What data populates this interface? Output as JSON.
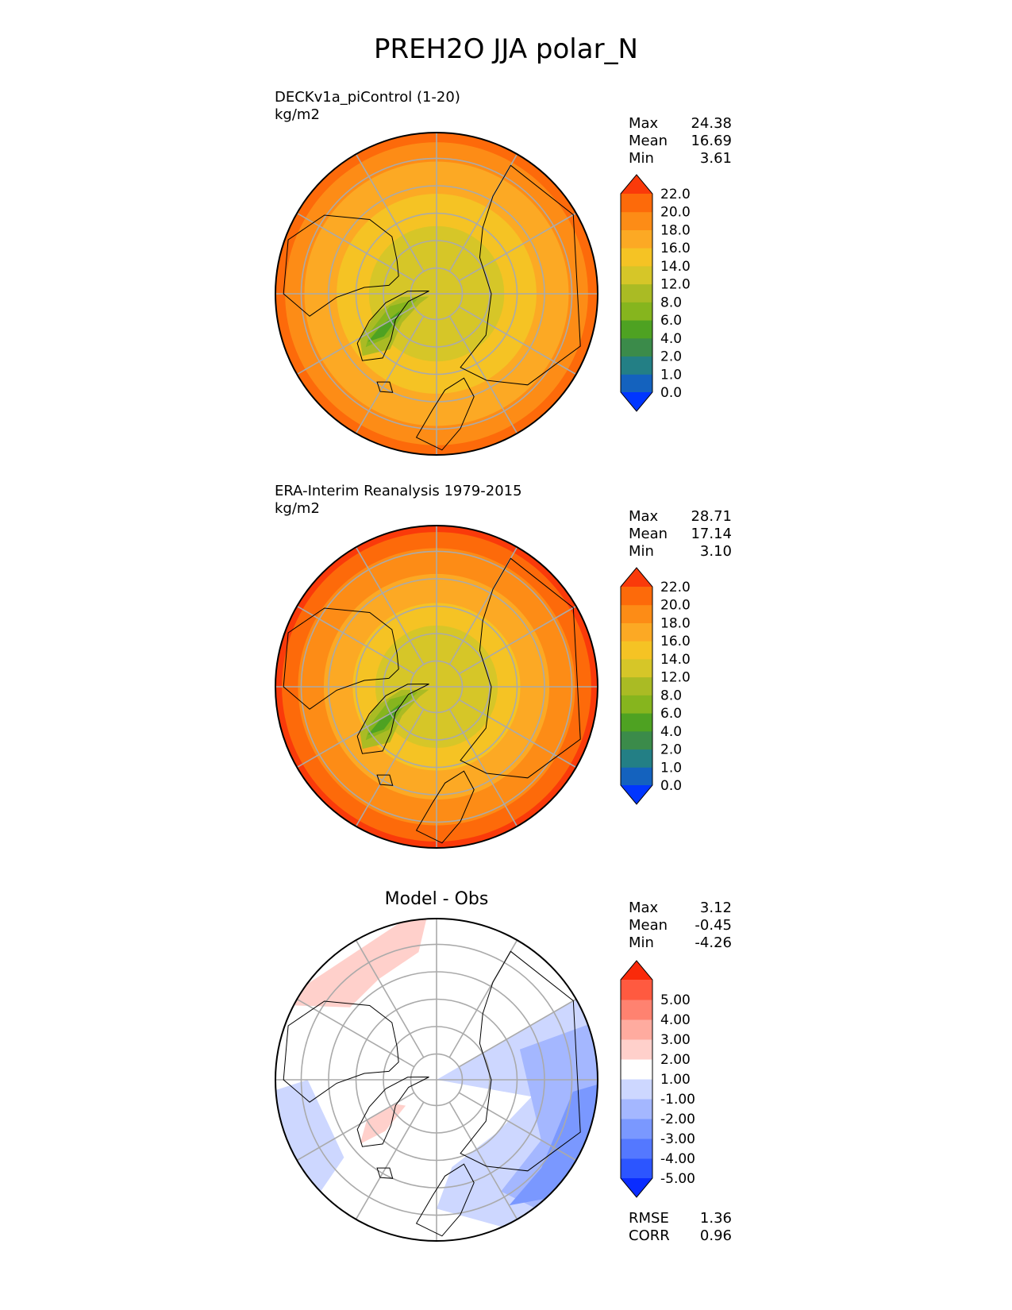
{
  "title": "PREH2O JJA polar_N",
  "panels": [
    {
      "id": "model",
      "label_line1": "DECKv1a_piControl (1-20)",
      "label_line2": "kg/m2",
      "stats": [
        {
          "name": "Max",
          "value": "24.38"
        },
        {
          "name": "Mean",
          "value": "16.69"
        },
        {
          "name": "Min",
          "value": "3.61"
        }
      ],
      "colorbar": {
        "extend": "both",
        "colors": [
          "#0036ff",
          "#1462be",
          "#237f85",
          "#3b8b4a",
          "#4ea222",
          "#86b51e",
          "#aabb24",
          "#d6c628",
          "#f5c324",
          "#fca924",
          "#fd8c16",
          "#fd6a0a",
          "#fa3a0a"
        ],
        "ticks": [
          "0.0",
          "1.0",
          "2.0",
          "4.0",
          "6.0",
          "8.0",
          "12.0",
          "14.0",
          "16.0",
          "18.0",
          "20.0",
          "22.0"
        ]
      }
    },
    {
      "id": "obs",
      "label_line1": "ERA-Interim Reanalysis 1979-2015",
      "label_line2": "kg/m2",
      "stats": [
        {
          "name": "Max",
          "value": "28.71"
        },
        {
          "name": "Mean",
          "value": "17.14"
        },
        {
          "name": "Min",
          "value": "3.10"
        }
      ],
      "colorbar": {
        "extend": "both",
        "colors": [
          "#0036ff",
          "#1462be",
          "#237f85",
          "#3b8b4a",
          "#4ea222",
          "#86b51e",
          "#aabb24",
          "#d6c628",
          "#f5c324",
          "#fca924",
          "#fd8c16",
          "#fd6a0a",
          "#fa3a0a"
        ],
        "ticks": [
          "0.0",
          "1.0",
          "2.0",
          "4.0",
          "6.0",
          "8.0",
          "12.0",
          "14.0",
          "16.0",
          "18.0",
          "20.0",
          "22.0"
        ]
      }
    },
    {
      "id": "diff",
      "center_title": "Model - Obs",
      "stats": [
        {
          "name": "Max",
          "value": "3.12"
        },
        {
          "name": "Mean",
          "value": "-0.45"
        },
        {
          "name": "Min",
          "value": "-4.26"
        }
      ],
      "metrics": [
        {
          "name": "RMSE",
          "value": "1.36"
        },
        {
          "name": "CORR",
          "value": "0.96"
        }
      ],
      "colorbar": {
        "extend": "both",
        "colors": [
          "#0a2cff",
          "#2c55ff",
          "#5478ff",
          "#7a98ff",
          "#a4b7ff",
          "#cdd7ff",
          "#ffffff",
          "#ffd0cb",
          "#ffab9f",
          "#ff8270",
          "#ff5a40",
          "#fa2a0a"
        ],
        "ticks": [
          "-5.00",
          "-4.00",
          "-3.00",
          "-2.00",
          "-1.00",
          "1.00",
          "2.00",
          "3.00",
          "4.00",
          "5.00"
        ]
      }
    }
  ],
  "chart_data": [
    {
      "type": "heatmap",
      "projection": "north polar stereographic",
      "title": "DECKv1a_piControl (1-20)",
      "units": "kg/m2",
      "variable": "PREH2O",
      "season": "JJA",
      "region": "polar_N",
      "color_levels": [
        0,
        1,
        2,
        4,
        6,
        8,
        12,
        14,
        16,
        18,
        20,
        22
      ],
      "max": 24.38,
      "mean": 16.69,
      "min": 3.61,
      "grid": true
    },
    {
      "type": "heatmap",
      "projection": "north polar stereographic",
      "title": "ERA-Interim Reanalysis 1979-2015",
      "units": "kg/m2",
      "color_levels": [
        0,
        1,
        2,
        4,
        6,
        8,
        12,
        14,
        16,
        18,
        20,
        22
      ],
      "max": 28.71,
      "mean": 17.14,
      "min": 3.1,
      "grid": true
    },
    {
      "type": "heatmap",
      "projection": "north polar stereographic",
      "title": "Model - Obs",
      "color_levels": [
        -5,
        -4,
        -3,
        -2,
        -1,
        1,
        2,
        3,
        4,
        5
      ],
      "max": 3.12,
      "mean": -0.45,
      "min": -4.26,
      "rmse": 1.36,
      "corr": 0.96,
      "grid": true
    }
  ]
}
